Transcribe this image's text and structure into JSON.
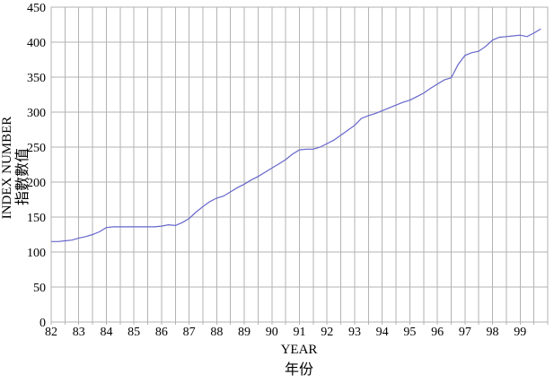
{
  "chart_data": {
    "type": "line",
    "title": "",
    "xlabel": "YEAR",
    "xlabel_zh": "年份",
    "ylabel": "INDEX NUMBER",
    "ylabel_zh": "指數數值",
    "xlim": [
      82,
      100
    ],
    "ylim": [
      0,
      450
    ],
    "grid": true,
    "grid_x_step": 0.5,
    "grid_y_step": 50,
    "x_tick_labels": [
      "82",
      "83",
      "84",
      "85",
      "86",
      "87",
      "88",
      "89",
      "90",
      "91",
      "92",
      "93",
      "94",
      "95",
      "96",
      "97",
      "98",
      "99"
    ],
    "x_tick_values": [
      82,
      83,
      84,
      85,
      86,
      87,
      88,
      89,
      90,
      91,
      92,
      93,
      94,
      95,
      96,
      97,
      98,
      99
    ],
    "y_tick_labels": [
      "0",
      "50",
      "100",
      "150",
      "200",
      "250",
      "300",
      "350",
      "400",
      "450"
    ],
    "y_tick_values": [
      0,
      50,
      100,
      150,
      200,
      250,
      300,
      350,
      400,
      450
    ],
    "colors": {
      "line": "#6666cc",
      "grid": "#b3b3b3",
      "text": "#000000",
      "background": "#ffffff"
    },
    "legend": "none",
    "series": [
      {
        "name": "index-number",
        "x": [
          82.0,
          82.25,
          82.5,
          82.75,
          83.0,
          83.25,
          83.5,
          83.75,
          84.0,
          84.25,
          84.5,
          84.75,
          85.0,
          85.25,
          85.5,
          85.75,
          86.0,
          86.25,
          86.5,
          86.75,
          87.0,
          87.25,
          87.5,
          87.75,
          88.0,
          88.25,
          88.5,
          88.75,
          89.0,
          89.25,
          89.5,
          89.75,
          90.0,
          90.25,
          90.5,
          90.75,
          91.0,
          91.25,
          91.5,
          91.75,
          92.0,
          92.25,
          92.5,
          92.75,
          93.0,
          93.25,
          93.5,
          93.75,
          94.0,
          94.25,
          94.5,
          94.75,
          95.0,
          95.25,
          95.5,
          95.75,
          96.0,
          96.25,
          96.5,
          96.75,
          97.0,
          97.25,
          97.5,
          97.75,
          98.0,
          98.25,
          98.5,
          98.75,
          99.0,
          99.25,
          99.5,
          99.75
        ],
        "y": [
          115,
          115,
          116,
          117,
          120,
          122,
          125,
          129,
          135,
          136,
          136,
          136,
          136,
          136,
          136,
          136,
          137,
          139,
          138,
          142,
          148,
          157,
          165,
          172,
          177,
          180,
          186,
          192,
          197,
          203,
          208,
          214,
          220,
          226,
          232,
          240,
          246,
          247,
          247,
          250,
          255,
          260,
          267,
          274,
          281,
          291,
          295,
          298,
          302,
          306,
          310,
          314,
          317,
          322,
          327,
          334,
          340,
          346,
          349,
          368,
          381,
          385,
          387,
          394,
          403,
          407,
          408,
          409,
          410,
          408,
          413,
          419
        ]
      }
    ]
  }
}
